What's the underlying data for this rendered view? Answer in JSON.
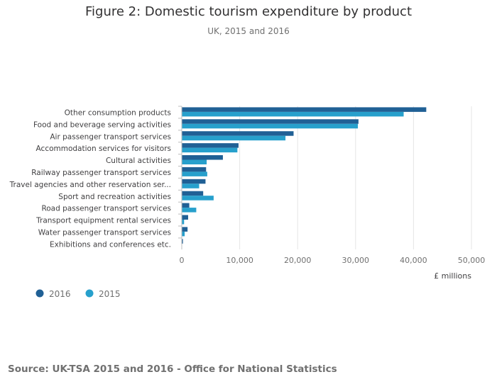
{
  "chart_data": {
    "type": "bar",
    "orientation": "horizontal",
    "title": "Figure 2: Domestic tourism expenditure by product",
    "subtitle": "UK, 2015 and 2016",
    "categories": [
      "Other consumption products",
      "Food and beverage serving activities",
      "Air passenger transport services",
      "Accommodation services for visitors",
      "Cultural activities",
      "Railway passenger transport services",
      "Travel agencies and other reservation ser...",
      "Sport and recreation activities",
      "Road passenger transport services",
      "Transport equipment rental services",
      "Water passenger transport services",
      "Exhibitions and conferences etc."
    ],
    "series": [
      {
        "name": "2016",
        "color": "#206095",
        "values": [
          42200,
          30500,
          19300,
          9800,
          7100,
          4200,
          4100,
          3700,
          1300,
          1100,
          1000,
          200
        ]
      },
      {
        "name": "2015",
        "color": "#27a0cc",
        "values": [
          38300,
          30400,
          17900,
          9600,
          4300,
          4400,
          3000,
          5500,
          2500,
          400,
          500,
          0
        ]
      }
    ],
    "xlabel": "£ millions",
    "xlim": [
      0,
      50000
    ],
    "xticks": [
      0,
      10000,
      20000,
      30000,
      40000,
      50000
    ],
    "xtick_labels": [
      "0",
      "10,000",
      "20,000",
      "30,000",
      "40,000",
      "50,000"
    ],
    "grid": true,
    "legend_position": "bottom-left"
  },
  "source": "Source: UK-TSA 2015 and 2016 - Office for National Statistics"
}
